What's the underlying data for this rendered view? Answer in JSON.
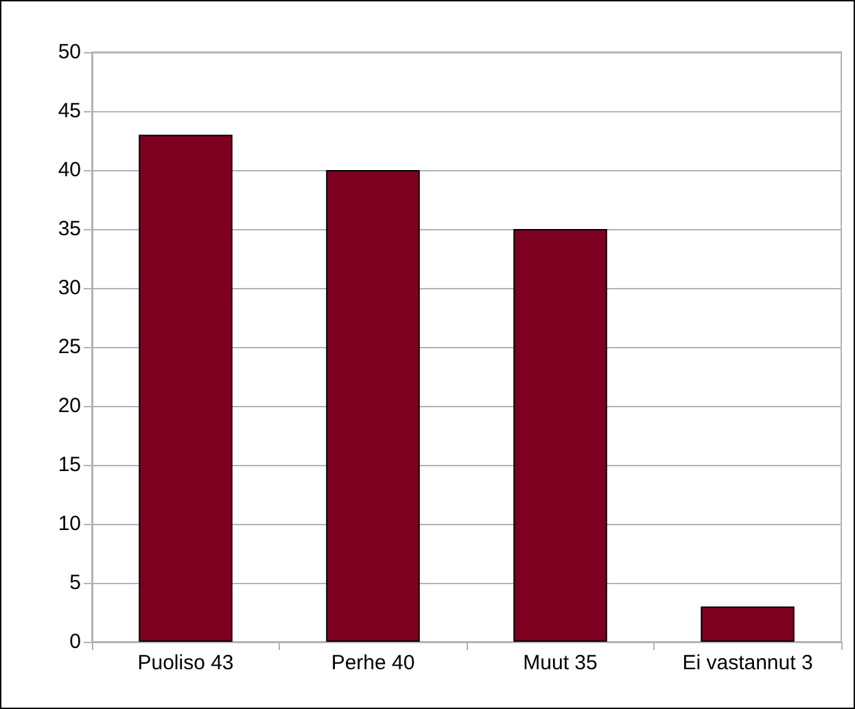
{
  "chart_data": {
    "type": "bar",
    "categories": [
      "Puoliso 43",
      "Perhe 40",
      "Muut 35",
      "Ei vastannut 3"
    ],
    "values": [
      43,
      40,
      35,
      3
    ],
    "color": "#7e0021",
    "ylim": [
      0,
      50
    ],
    "yticks": [
      0,
      5,
      10,
      15,
      20,
      25,
      30,
      35,
      40,
      45,
      50
    ],
    "grid": "y"
  }
}
